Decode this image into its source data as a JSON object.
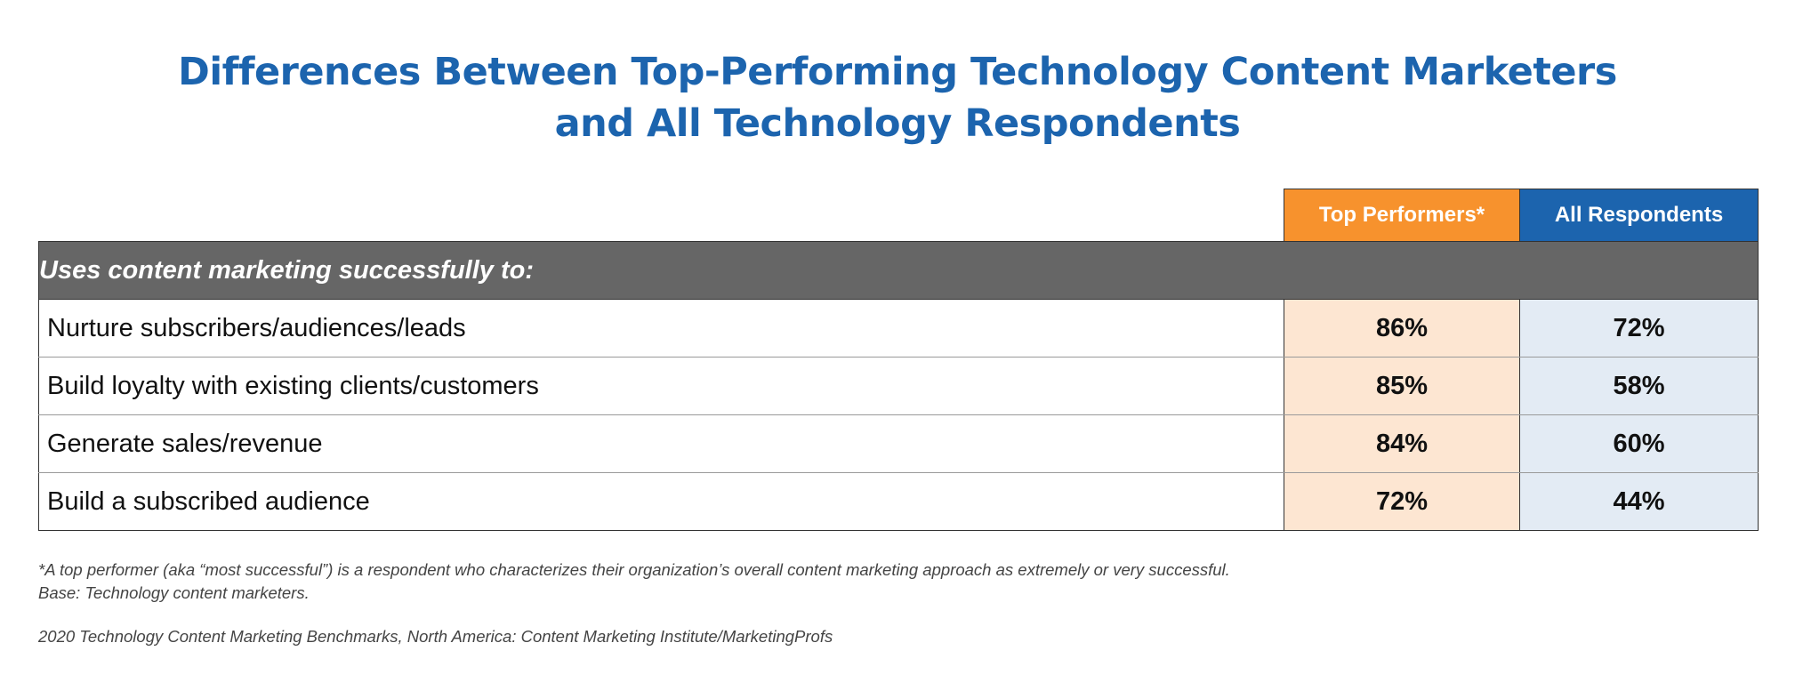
{
  "title": {
    "line1": "Differences Between Top-Performing Technology Content Marketers",
    "line2": "and All Technology Respondents"
  },
  "colors": {
    "title": "#1c64ae",
    "top_performers_header": "#f7922d",
    "all_respondents_header": "#1c64ae",
    "section_header": "#666666",
    "top_performers_cell": "#fde6d2",
    "all_respondents_cell": "#e3ebf4"
  },
  "chart_data": {
    "type": "table",
    "columns": [
      "Top Performers*",
      "All Respondents"
    ],
    "section_label": "Uses content marketing successfully to:",
    "rows": [
      {
        "label": "Nurture subscribers/audiences/leads",
        "values": [
          "86%",
          "72%"
        ]
      },
      {
        "label": "Build loyalty with existing clients/customers",
        "values": [
          "85%",
          "58%"
        ]
      },
      {
        "label": "Generate sales/revenue",
        "values": [
          "84%",
          "60%"
        ]
      },
      {
        "label": "Build a subscribed audience",
        "values": [
          "72%",
          "44%"
        ]
      }
    ]
  },
  "footnotes": {
    "definition": "*A top performer (aka “most successful”) is a respondent who characterizes their organization’s overall content marketing approach as extremely or very successful.",
    "base": "Base: Technology content marketers.",
    "source": "2020 Technology Content Marketing Benchmarks, North America: Content Marketing Institute/MarketingProfs"
  }
}
